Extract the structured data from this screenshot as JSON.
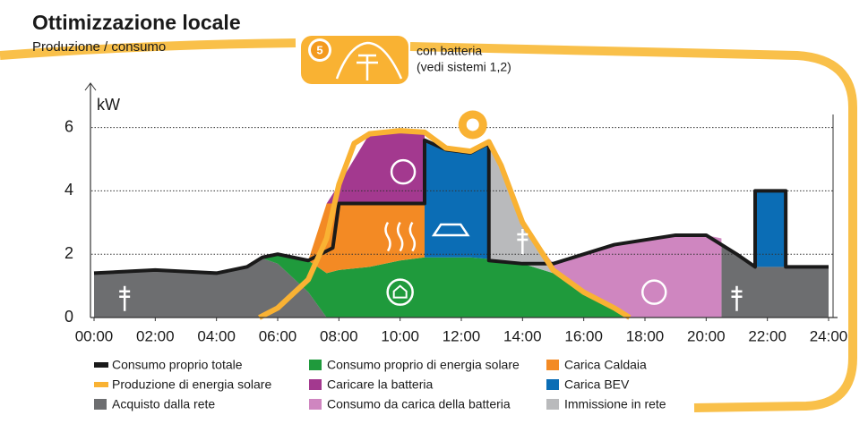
{
  "chart_data": {
    "type": "area",
    "title": "Ottimizzazione locale",
    "subtitle": "Produzione / consumo",
    "badge": "5",
    "badge_text": [
      "con batteria",
      "(vedi sistemi 1,2)"
    ],
    "y_label": "kW",
    "xlim": [
      0,
      24
    ],
    "ylim": [
      0,
      7.4
    ],
    "xticks": [
      {
        "value": 0,
        "label": "00:00"
      },
      {
        "value": 2,
        "label": "02:00"
      },
      {
        "value": 4,
        "label": "04:00"
      },
      {
        "value": 6,
        "label": "06:00"
      },
      {
        "value": 8,
        "label": "08:00"
      },
      {
        "value": 10,
        "label": "10:00"
      },
      {
        "value": 12,
        "label": "12:00"
      },
      {
        "value": 14,
        "label": "14:00"
      },
      {
        "value": 16,
        "label": "16:00"
      },
      {
        "value": 18,
        "label": "18:00"
      },
      {
        "value": 20,
        "label": "20:00"
      },
      {
        "value": 22,
        "label": "22:00"
      },
      {
        "value": 24,
        "label": "24:00"
      }
    ],
    "yticks": [
      0,
      2,
      4,
      6
    ],
    "grid": true,
    "x": [
      0,
      2,
      4,
      5,
      5.4,
      6,
      7,
      7.6,
      8,
      9,
      10,
      10.8,
      10.8,
      11.5,
      12.3,
      12.9,
      12.9,
      14,
      15,
      16,
      17,
      17.5,
      18,
      19,
      20,
      20.5,
      20.5,
      21.6,
      21.6,
      22.6,
      22.6,
      24
    ],
    "series": [
      {
        "name": "Acquisto dalla rete",
        "color": "#6d6e70",
        "values": [
          1.4,
          1.5,
          1.4,
          1.6,
          1.9,
          1.7,
          0.8,
          0,
          0,
          0,
          0,
          0,
          0,
          0,
          0,
          0,
          0,
          0,
          0,
          0,
          0,
          0,
          0,
          0,
          0,
          0,
          2.3,
          1.6,
          1.6,
          1.6,
          1.6,
          1.6
        ]
      },
      {
        "name": "Consumo proprio di energia solare",
        "color": "#1f9a3c",
        "values": [
          0,
          0,
          0,
          0,
          0,
          0.3,
          1.0,
          1.4,
          1.5,
          1.6,
          1.8,
          1.9,
          1.9,
          1.9,
          1.9,
          1.85,
          1.85,
          1.7,
          1.4,
          0.8,
          0.3,
          0,
          0,
          0,
          0,
          0,
          0,
          0,
          0,
          0,
          0,
          0
        ]
      },
      {
        "name": "Carica Caldaia",
        "color": "#f38a24",
        "values": [
          0,
          0,
          0,
          0,
          0,
          0,
          0,
          2.2,
          2.1,
          2.0,
          1.8,
          1.7,
          0,
          0,
          0,
          0,
          0,
          0,
          0,
          0,
          0,
          0,
          0,
          0,
          0,
          0,
          0,
          0,
          0,
          0,
          0,
          0
        ]
      },
      {
        "name": "Carica BEV",
        "color": "#0b6db5",
        "values": [
          0,
          0,
          0,
          0,
          0,
          0,
          0,
          0,
          0,
          0,
          0,
          0,
          3.7,
          3.4,
          3.3,
          3.65,
          0,
          0,
          0,
          0,
          0,
          0,
          0,
          0,
          0,
          0,
          0,
          0,
          2.4,
          2.4,
          0,
          0
        ]
      },
      {
        "name": "Immissione in rete",
        "color": "#b9babc",
        "values": [
          0,
          0,
          0,
          0,
          0,
          0,
          0,
          0,
          0,
          0,
          0,
          0,
          0,
          0,
          0,
          0,
          3.65,
          1.3,
          0,
          0,
          0,
          0,
          0,
          0,
          0,
          0,
          0,
          0,
          0,
          0,
          0,
          0
        ]
      },
      {
        "name": "Consumo da carica della batteria",
        "color": "#cf86c0",
        "values": [
          0,
          0,
          0,
          0,
          0,
          0,
          0,
          0,
          0,
          0,
          0,
          0,
          0,
          0,
          0,
          0,
          0,
          0,
          0.3,
          1.2,
          2.0,
          2.4,
          2.5,
          2.6,
          2.6,
          2.5,
          0,
          0,
          0,
          0,
          0,
          0
        ]
      },
      {
        "name": "Caricare la batteria",
        "color": "#a3398f",
        "values": [
          0,
          0,
          0,
          0,
          0,
          0,
          0,
          0,
          0.6,
          2.2,
          2.3,
          2.25,
          0,
          0,
          0,
          0,
          0,
          0,
          0,
          0,
          0,
          0,
          0,
          0,
          0,
          0,
          0,
          0,
          0,
          0,
          0,
          0
        ]
      }
    ],
    "lines": [
      {
        "name": "Consumo proprio totale",
        "color": "#1a1a1a",
        "x": [
          0,
          2,
          4,
          5,
          5.5,
          6,
          7,
          7.8,
          8,
          10.8,
          10.8,
          11.5,
          12.3,
          12.9,
          12.9,
          14,
          15,
          16,
          17,
          19,
          20,
          21,
          21.6,
          21.6,
          22.6,
          22.6,
          24
        ],
        "values": [
          1.4,
          1.5,
          1.4,
          1.6,
          1.9,
          2.0,
          1.8,
          2.2,
          3.6,
          3.6,
          5.6,
          5.3,
          5.2,
          5.5,
          1.8,
          1.7,
          1.7,
          2.0,
          2.3,
          2.6,
          2.6,
          2.0,
          1.6,
          4.0,
          4.0,
          1.6,
          1.6
        ]
      },
      {
        "name": "Produzione di energia solare",
        "color": "#f9b233",
        "x": [
          5.4,
          6,
          7,
          7.6,
          8,
          8.5,
          9,
          10,
          10.8,
          11.5,
          12.3,
          12.9,
          13.3,
          14,
          15,
          16,
          17,
          17.5
        ],
        "values": [
          0,
          0.3,
          1.2,
          2.5,
          4.2,
          5.5,
          5.8,
          5.9,
          5.85,
          5.35,
          5.25,
          5.55,
          4.8,
          3.0,
          1.5,
          0.8,
          0.3,
          0
        ]
      }
    ]
  }
}
